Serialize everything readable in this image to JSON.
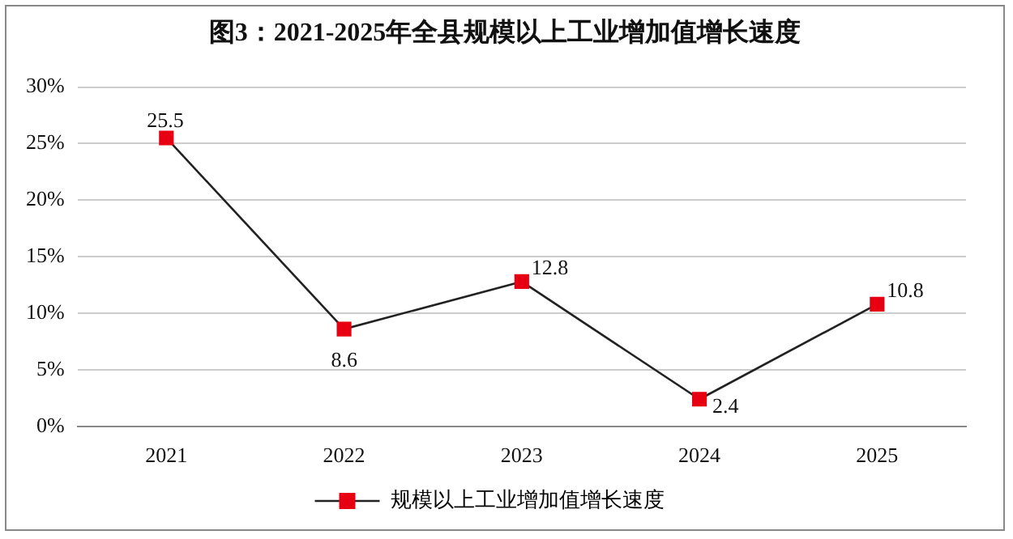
{
  "chart_data": {
    "type": "line",
    "title": "图3：2021-2025年全县规模以上工业增加值增长速度",
    "categories": [
      "2021",
      "2022",
      "2023",
      "2024",
      "2025"
    ],
    "series": [
      {
        "name": "规模以上工业增加值增长速度",
        "color": "#e60012",
        "values": [
          25.5,
          8.6,
          12.8,
          2.4,
          10.8
        ]
      }
    ],
    "ylim": [
      0,
      30
    ],
    "yticks": [
      {
        "value": 0,
        "label": "0%"
      },
      {
        "value": 5,
        "label": "5%"
      },
      {
        "value": 10,
        "label": "10%"
      },
      {
        "value": 15,
        "label": "15%"
      },
      {
        "value": 20,
        "label": "20%"
      },
      {
        "value": 25,
        "label": "25%"
      },
      {
        "value": 30,
        "label": "30%"
      }
    ],
    "grid": "y",
    "legend": "bottom",
    "marker": "square",
    "line_style": "solid",
    "data_labels": true
  }
}
